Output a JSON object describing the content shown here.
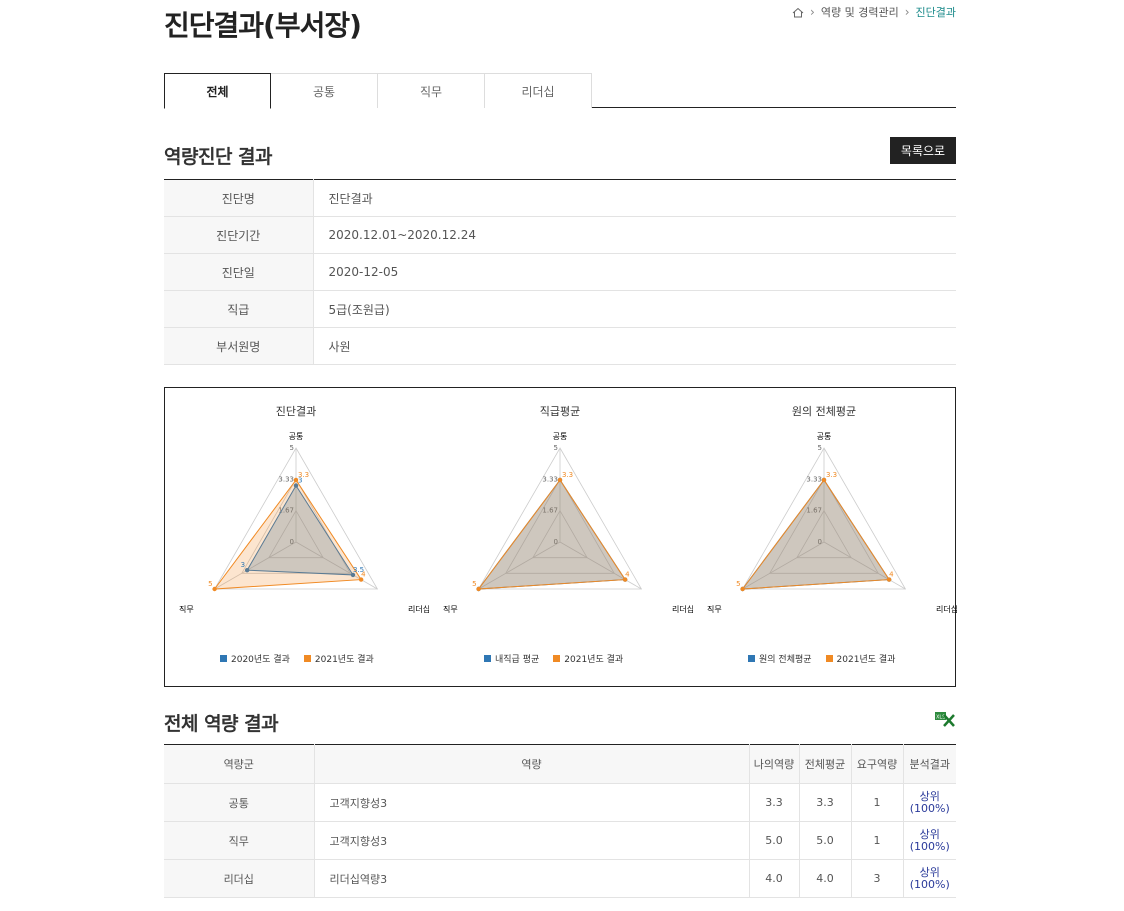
{
  "page": {
    "title": "진단결과(부서장)"
  },
  "breadcrumb": {
    "items": [
      "역량 및 경력관리",
      "진단결과"
    ]
  },
  "tabs": [
    {
      "label": "전체",
      "active": true
    },
    {
      "label": "공통",
      "active": false
    },
    {
      "label": "직무",
      "active": false
    },
    {
      "label": "리더십",
      "active": false
    }
  ],
  "section1": {
    "title": "역량진단 결과",
    "list_button": "목록으로"
  },
  "info": [
    {
      "label": "진단명",
      "value": "진단결과"
    },
    {
      "label": "진단기간",
      "value": "2020.12.01~2020.12.24"
    },
    {
      "label": "진단일",
      "value": "2020-12-05"
    },
    {
      "label": "직급",
      "value": "5급(조원급)"
    },
    {
      "label": "부서원명",
      "value": "사원"
    }
  ],
  "colors": {
    "blue": "#2f77b4",
    "orange": "#f08a24"
  },
  "chart_data": [
    {
      "type": "radar",
      "title": "진단결과",
      "axes": [
        "공통",
        "리더십",
        "직무"
      ],
      "ticks": [
        "0",
        "1.67",
        "3.33",
        "5"
      ],
      "range": [
        0,
        5
      ],
      "series": [
        {
          "name": "2020년도 결과",
          "values": [
            3.0,
            3.5,
            3.0
          ],
          "labels": [
            "3",
            "3.5",
            "3"
          ]
        },
        {
          "name": "2021년도 결과",
          "values": [
            3.3,
            4.0,
            5.0
          ],
          "labels": [
            "3.3",
            "4",
            "5"
          ]
        }
      ]
    },
    {
      "type": "radar",
      "title": "직급평균",
      "axes": [
        "공통",
        "리더십",
        "직무"
      ],
      "ticks": [
        "0",
        "1.67",
        "3.33",
        "5"
      ],
      "range": [
        0,
        5
      ],
      "series": [
        {
          "name": "내직급 평균",
          "values": [
            3.3,
            4.0,
            5.0
          ],
          "labels": [
            "",
            "",
            ""
          ]
        },
        {
          "name": "2021년도 결과",
          "values": [
            3.3,
            4.0,
            5.0
          ],
          "labels": [
            "3.3",
            "4",
            "5"
          ]
        }
      ]
    },
    {
      "type": "radar",
      "title": "원의 전체평균",
      "axes": [
        "공통",
        "리더십",
        "직무"
      ],
      "ticks": [
        "0",
        "1.67",
        "3.33",
        "5"
      ],
      "range": [
        0,
        5
      ],
      "series": [
        {
          "name": "원의 전체평균",
          "values": [
            3.3,
            4.0,
            5.0
          ],
          "labels": [
            "",
            "",
            ""
          ]
        },
        {
          "name": "2021년도 결과",
          "values": [
            3.3,
            4.0,
            5.0
          ],
          "labels": [
            "3.3",
            "4",
            "5"
          ]
        }
      ]
    }
  ],
  "section2": {
    "title": "전체 역량 결과"
  },
  "result_table": {
    "headers": [
      "역량군",
      "역량",
      "나의역량",
      "전체평균",
      "요구역량",
      "분석결과"
    ],
    "rows": [
      {
        "group": "공통",
        "name": "고객지향성3",
        "mine": "3.3",
        "avg": "3.3",
        "req": "1",
        "res1": "상위",
        "res2": "(100%)"
      },
      {
        "group": "직무",
        "name": "고객지향성3",
        "mine": "5.0",
        "avg": "5.0",
        "req": "1",
        "res1": "상위",
        "res2": "(100%)"
      },
      {
        "group": "리더십",
        "name": "리더십역량3",
        "mine": "4.0",
        "avg": "4.0",
        "req": "3",
        "res1": "상위",
        "res2": "(100%)"
      }
    ]
  }
}
